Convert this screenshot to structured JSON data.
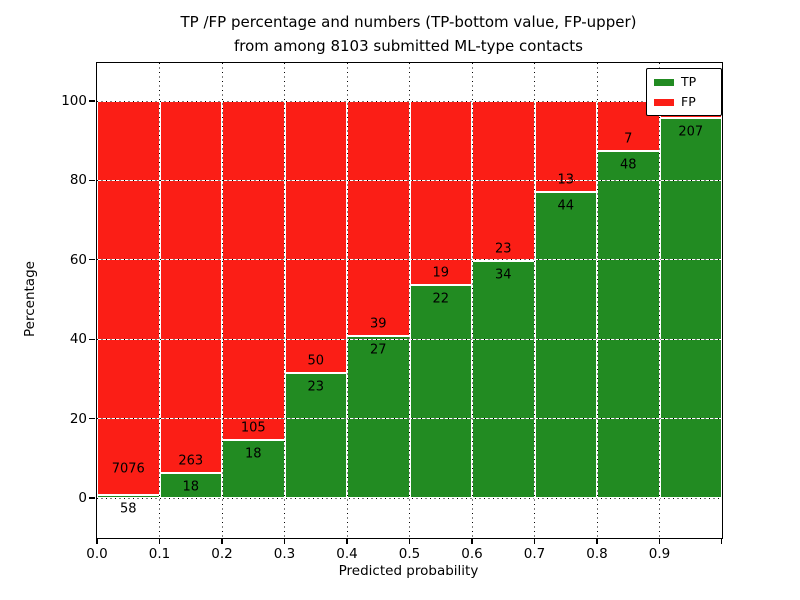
{
  "figure": {
    "title_line1": "TP /FP percentage and numbers (TP-bottom value, FP-upper)",
    "title_line2": "from among 8103 submitted ML-type contacts",
    "xlabel": "Predicted probability",
    "ylabel": "Percentage"
  },
  "legend": {
    "position": "upper right",
    "items": [
      {
        "label": "TP",
        "color": "#228b22"
      },
      {
        "label": "FP",
        "color": "#fb1e16"
      }
    ]
  },
  "chart_data": {
    "type": "bar",
    "stacked": true,
    "title": "TP /FP percentage and numbers (TP-bottom value, FP-upper)\nfrom among 8103 submitted ML-type contacts",
    "xlabel": "Predicted probability",
    "ylabel": "Percentage",
    "xlim": [
      0.0,
      1.0
    ],
    "ylim": [
      -10,
      110
    ],
    "grid": true,
    "legend_position": "upper right",
    "xticks": [
      "0.0",
      "0.1",
      "0.2",
      "0.3",
      "0.4",
      "0.5",
      "0.6",
      "0.7",
      "0.8",
      "0.9"
    ],
    "yticks": [
      "0",
      "20",
      "40",
      "60",
      "80",
      "100"
    ],
    "ytick_values": [
      0,
      20,
      40,
      60,
      80,
      100
    ],
    "colors": {
      "tp": "#228b22",
      "fp": "#fb1e16",
      "bar_edge": "#ffffff"
    },
    "bins": [
      {
        "range": [
          0.0,
          0.1
        ],
        "tp_count": 58,
        "fp_count": 7076,
        "tp_label": "58",
        "fp_label": "7076",
        "tp_pct": 0.8
      },
      {
        "range": [
          0.1,
          0.2
        ],
        "tp_count": 18,
        "fp_count": 263,
        "tp_label": "18",
        "fp_label": "263",
        "tp_pct": 6.4
      },
      {
        "range": [
          0.2,
          0.3
        ],
        "tp_count": 18,
        "fp_count": 105,
        "tp_label": "18",
        "fp_label": "105",
        "tp_pct": 14.6
      },
      {
        "range": [
          0.3,
          0.4
        ],
        "tp_count": 23,
        "fp_count": 50,
        "tp_label": "23",
        "fp_label": "50",
        "tp_pct": 31.5
      },
      {
        "range": [
          0.4,
          0.5
        ],
        "tp_count": 27,
        "fp_count": 39,
        "tp_label": "27",
        "fp_label": "39",
        "tp_pct": 40.9
      },
      {
        "range": [
          0.5,
          0.6
        ],
        "tp_count": 22,
        "fp_count": 19,
        "tp_label": "22",
        "fp_label": "19",
        "tp_pct": 53.7
      },
      {
        "range": [
          0.6,
          0.7
        ],
        "tp_count": 34,
        "fp_count": 23,
        "tp_label": "34",
        "fp_label": "23",
        "tp_pct": 59.6
      },
      {
        "range": [
          0.7,
          0.8
        ],
        "tp_count": 44,
        "fp_count": 13,
        "tp_label": "44",
        "fp_label": "13",
        "tp_pct": 77.2
      },
      {
        "range": [
          0.8,
          0.9
        ],
        "tp_count": 48,
        "fp_count": 7,
        "tp_label": "48",
        "fp_label": "7",
        "tp_pct": 87.3
      },
      {
        "range": [
          0.9,
          1.0
        ],
        "tp_count": 207,
        "fp_count": null,
        "tp_label": "207",
        "fp_label": "",
        "tp_pct": 95.8
      }
    ],
    "series": [
      {
        "name": "TP",
        "color": "#228b22",
        "values": [
          0.8,
          6.4,
          14.6,
          31.5,
          40.9,
          53.7,
          59.6,
          77.2,
          87.3,
          95.8
        ]
      },
      {
        "name": "FP",
        "color": "#fb1e16",
        "values": [
          99.2,
          93.6,
          85.4,
          68.5,
          59.1,
          46.3,
          40.4,
          22.8,
          12.7,
          4.2
        ]
      }
    ]
  }
}
